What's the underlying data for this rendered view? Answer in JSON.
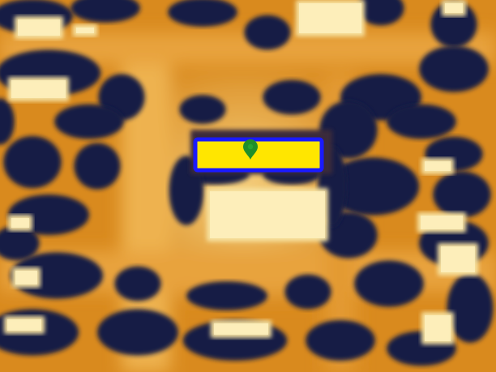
{
  "map": {
    "style": "false-color thermal aerial imagery",
    "colors": {
      "ground": "#d98a1e",
      "ground_bright": "#f0b54a",
      "road": "#f3c36a",
      "vegetation": "#131a45",
      "vegetation_edge": "#3a2a3a",
      "roof": "#f7e2a0",
      "roof_bright": "#fff3c4"
    }
  },
  "selection": {
    "fill": "#ffe600",
    "stroke": "#1a1aff"
  },
  "marker": {
    "icon": "map-pin-icon",
    "color": "#1f8f2a"
  }
}
